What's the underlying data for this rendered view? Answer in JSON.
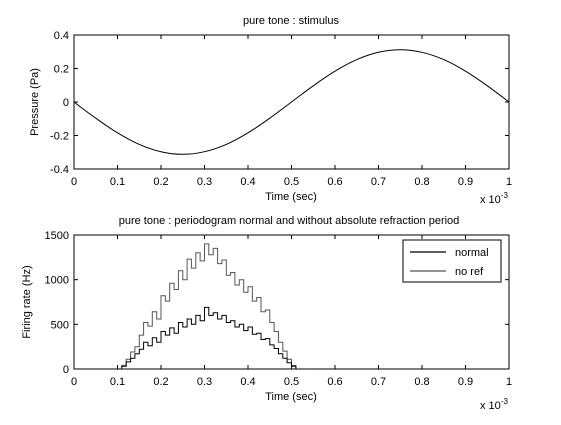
{
  "chart_data": [
    {
      "type": "line",
      "title": "pure tone : stimulus",
      "xlabel": "Time (sec)",
      "ylabel": "Pressure (Pa)",
      "xlim": [
        0,
        1
      ],
      "ylim": [
        -0.4,
        0.4
      ],
      "x_ticks": [
        "0",
        "0.1",
        "0.2",
        "0.3",
        "0.4",
        "0.5",
        "0.6",
        "0.7",
        "0.8",
        "0.9",
        "1"
      ],
      "y_ticks": [
        "-0.4",
        "-0.2",
        "0",
        "0.2",
        "0.4"
      ],
      "x_multiplier": "x 10",
      "x_multiplier_exp": "-3",
      "grid": false,
      "series": [
        {
          "x": [
            0,
            0.05,
            0.1,
            0.15,
            0.2,
            0.25,
            0.3,
            0.35,
            0.4,
            0.45,
            0.5,
            0.55,
            0.6,
            0.65,
            0.7,
            0.75,
            0.8,
            0.85,
            0.9,
            0.95,
            1
          ],
          "values": [
            0,
            -0.097,
            -0.184,
            -0.253,
            -0.297,
            -0.312,
            -0.297,
            -0.253,
            -0.184,
            -0.097,
            0,
            0.097,
            0.184,
            0.253,
            0.297,
            0.312,
            0.297,
            0.253,
            0.184,
            0.097,
            0
          ],
          "color": "#000000"
        }
      ]
    },
    {
      "type": "line",
      "title": "pure tone : periodogram normal and without absolute refraction period",
      "xlabel": "Time (sec)",
      "ylabel": "Firing rate (Hz)",
      "xlim": [
        0,
        1
      ],
      "ylim": [
        0,
        1500
      ],
      "x_ticks": [
        "0",
        "0.1",
        "0.2",
        "0.3",
        "0.4",
        "0.5",
        "0.6",
        "0.7",
        "0.8",
        "0.9",
        "1"
      ],
      "y_ticks": [
        "0",
        "500",
        "1000",
        "1500"
      ],
      "x_multiplier": "x 10",
      "x_multiplier_exp": "-3",
      "grid": false,
      "legend_position": "top-right",
      "series": [
        {
          "name": "normal",
          "color": "#000000",
          "step": true,
          "x": [
            0.1,
            0.11,
            0.12,
            0.13,
            0.14,
            0.15,
            0.16,
            0.17,
            0.18,
            0.19,
            0.2,
            0.21,
            0.22,
            0.23,
            0.24,
            0.25,
            0.26,
            0.27,
            0.28,
            0.29,
            0.3,
            0.31,
            0.32,
            0.33,
            0.34,
            0.35,
            0.36,
            0.37,
            0.38,
            0.39,
            0.4,
            0.41,
            0.42,
            0.43,
            0.44,
            0.45,
            0.46,
            0.47,
            0.48,
            0.49,
            0.5,
            0.51,
            0.52
          ],
          "values": [
            0,
            30,
            80,
            120,
            170,
            220,
            300,
            260,
            350,
            300,
            420,
            380,
            460,
            400,
            520,
            470,
            560,
            500,
            600,
            540,
            690,
            600,
            630,
            560,
            600,
            520,
            540,
            470,
            500,
            430,
            470,
            390,
            400,
            330,
            340,
            270,
            230,
            170,
            120,
            70,
            30,
            0,
            0
          ]
        },
        {
          "name": "no ref",
          "color": "#555555",
          "step": true,
          "x": [
            0.1,
            0.11,
            0.12,
            0.13,
            0.14,
            0.15,
            0.16,
            0.17,
            0.18,
            0.19,
            0.2,
            0.21,
            0.22,
            0.23,
            0.24,
            0.25,
            0.26,
            0.27,
            0.28,
            0.29,
            0.3,
            0.31,
            0.32,
            0.33,
            0.34,
            0.35,
            0.36,
            0.37,
            0.38,
            0.39,
            0.4,
            0.41,
            0.42,
            0.43,
            0.44,
            0.45,
            0.46,
            0.47,
            0.48,
            0.49,
            0.5,
            0.51,
            0.52
          ],
          "values": [
            0,
            40,
            110,
            190,
            250,
            380,
            520,
            480,
            640,
            560,
            820,
            760,
            960,
            890,
            1100,
            1000,
            1230,
            1130,
            1300,
            1210,
            1400,
            1280,
            1350,
            1180,
            1220,
            1050,
            1080,
            940,
            1000,
            860,
            920,
            760,
            800,
            640,
            660,
            520,
            420,
            300,
            200,
            110,
            40,
            0,
            0
          ]
        }
      ]
    }
  ]
}
